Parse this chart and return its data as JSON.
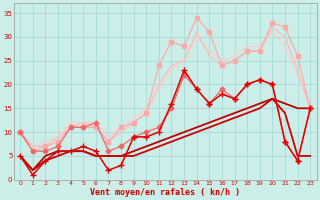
{
  "bg_color": "#cceee8",
  "grid_color": "#aadddd",
  "xlabel": "Vent moyen/en rafales ( kn/h )",
  "ylabel_ticks": [
    0,
    5,
    10,
    15,
    20,
    25,
    30,
    35
  ],
  "xlim": [
    -0.5,
    23.5
  ],
  "ylim": [
    0,
    37
  ],
  "lines": [
    {
      "x": [
        0,
        1,
        2,
        3,
        4,
        5,
        6,
        7,
        8,
        9,
        10,
        11,
        12,
        13,
        14,
        15,
        16,
        17,
        18,
        19,
        20,
        21,
        22,
        23
      ],
      "y": [
        5,
        1,
        4,
        6,
        6,
        7,
        6,
        2,
        3,
        9,
        9,
        10,
        16,
        23,
        19,
        16,
        18,
        17,
        20,
        21,
        20,
        8,
        4,
        15
      ],
      "color": "#dd0000",
      "marker": "+",
      "lw": 1.1,
      "ms": 4,
      "zorder": 5
    },
    {
      "x": [
        0,
        1,
        2,
        3,
        4,
        5,
        6,
        7,
        8,
        9,
        10,
        11,
        12,
        13,
        14,
        15,
        16,
        17,
        18,
        19,
        20,
        21,
        22,
        23
      ],
      "y": [
        5,
        2,
        4,
        5,
        6,
        6,
        5,
        5,
        5,
        5,
        6,
        7,
        8,
        9,
        10,
        11,
        12,
        13,
        14,
        15,
        17,
        14,
        5,
        5
      ],
      "color": "#cc0000",
      "marker": null,
      "lw": 1.3,
      "ms": 0,
      "zorder": 4
    },
    {
      "x": [
        0,
        1,
        2,
        3,
        4,
        5,
        6,
        7,
        8,
        9,
        10,
        11,
        12,
        13,
        14,
        15,
        16,
        17,
        18,
        19,
        20,
        21,
        22,
        23
      ],
      "y": [
        5,
        2,
        5,
        6,
        6,
        6,
        5,
        5,
        5,
        6,
        7,
        8,
        9,
        10,
        11,
        12,
        13,
        14,
        15,
        16,
        17,
        16,
        15,
        15
      ],
      "color": "#bb0000",
      "marker": null,
      "lw": 1.3,
      "ms": 0,
      "zorder": 3
    },
    {
      "x": [
        0,
        1,
        2,
        3,
        4,
        5,
        6,
        7,
        8,
        9,
        10,
        11,
        12,
        13,
        14,
        15,
        16,
        17,
        18,
        19,
        20,
        21,
        22,
        23
      ],
      "y": [
        10,
        6,
        6,
        7,
        11,
        11,
        12,
        6,
        7,
        9,
        10,
        11,
        15,
        22,
        19,
        16,
        19,
        17,
        20,
        21,
        20,
        8,
        4,
        15
      ],
      "color": "#ee6666",
      "marker": "D",
      "lw": 0.9,
      "ms": 2.5,
      "zorder": 4
    },
    {
      "x": [
        0,
        1,
        2,
        3,
        4,
        5,
        6,
        7,
        8,
        9,
        10,
        11,
        12,
        13,
        14,
        15,
        16,
        17,
        18,
        19,
        20,
        21,
        22,
        23
      ],
      "y": [
        10,
        6,
        7,
        8,
        11,
        11,
        11,
        8,
        11,
        12,
        14,
        24,
        29,
        28,
        34,
        31,
        24,
        25,
        27,
        27,
        33,
        32,
        26,
        15
      ],
      "color": "#ffaaaa",
      "marker": "s",
      "lw": 0.9,
      "ms": 2.5,
      "zorder": 3
    },
    {
      "x": [
        0,
        1,
        2,
        3,
        4,
        5,
        6,
        7,
        8,
        9,
        10,
        11,
        12,
        13,
        14,
        15,
        16,
        17,
        18,
        19,
        20,
        21,
        22,
        23
      ],
      "y": [
        10,
        7,
        8,
        9,
        12,
        12,
        12,
        9,
        11,
        13,
        15,
        19,
        23,
        25,
        30,
        27,
        25,
        26,
        28,
        28,
        31,
        28,
        22,
        15
      ],
      "color": "#ffcccc",
      "marker": null,
      "lw": 0.9,
      "ms": 0,
      "zorder": 2
    },
    {
      "x": [
        0,
        1,
        2,
        3,
        4,
        5,
        6,
        7,
        8,
        9,
        10,
        11,
        12,
        13,
        14,
        15,
        16,
        17,
        18,
        19,
        20,
        21,
        22,
        23
      ],
      "y": [
        10,
        7,
        7,
        9,
        11,
        12,
        11,
        8,
        10,
        12,
        14,
        20,
        24,
        25,
        31,
        26,
        24,
        25,
        27,
        27,
        32,
        30,
        23,
        15
      ],
      "color": "#ffbbbb",
      "marker": null,
      "lw": 0.9,
      "ms": 0,
      "zorder": 2
    }
  ]
}
